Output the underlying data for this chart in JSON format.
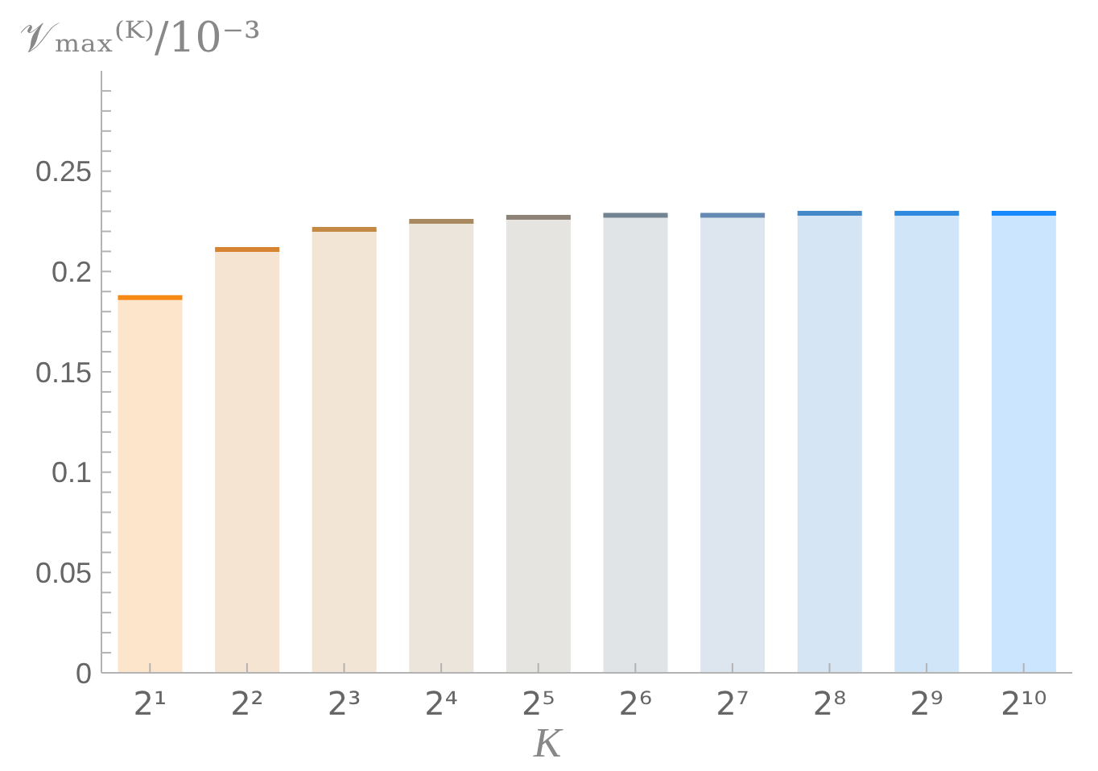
{
  "chart_data": {
    "type": "bar",
    "ylabel": "𝒱ₘₐₓ⁽ᴷ⁾/10⁻³",
    "xlabel": "K",
    "categories": [
      "2¹",
      "2²",
      "2³",
      "2⁴",
      "2⁵",
      "2⁶",
      "2⁷",
      "2⁸",
      "2⁹",
      "2¹⁰"
    ],
    "values": [
      0.187,
      0.211,
      0.221,
      0.225,
      0.227,
      0.228,
      0.228,
      0.229,
      0.229,
      0.229
    ],
    "colors": [
      "#fde5cb",
      "#f6e4d2",
      "#f2e5d6",
      "#ece5dc",
      "#e6e4e1",
      "#e0e4e7",
      "#dde5ee",
      "#d6e5f3",
      "#d1e5f8",
      "#cce5fe"
    ],
    "ylim": [
      0,
      0.3
    ],
    "yticks": [
      0,
      {
        "value": 0.01,
        "label": null
      },
      {
        "value": 0.02,
        "label": null
      },
      {
        "value": 0.03,
        "label": null
      },
      {
        "value": 0.04,
        "label": null
      },
      0.05,
      {
        "value": 0.06,
        "label": null
      },
      {
        "value": 0.07,
        "label": null
      },
      {
        "value": 0.08,
        "label": null
      },
      {
        "value": 0.09,
        "label": null
      },
      0.1,
      {
        "value": 0.11,
        "label": null
      },
      {
        "value": 0.12,
        "label": null
      },
      {
        "value": 0.13,
        "label": null
      },
      {
        "value": 0.14,
        "label": null
      },
      0.15,
      {
        "value": 0.16,
        "label": null
      },
      {
        "value": 0.17,
        "label": null
      },
      {
        "value": 0.18,
        "label": null
      },
      {
        "value": 0.19,
        "label": null
      },
      0.2,
      {
        "value": 0.21,
        "label": null
      },
      {
        "value": 0.22,
        "label": null
      },
      {
        "value": 0.23,
        "label": null
      },
      {
        "value": 0.24,
        "label": null
      },
      0.25,
      {
        "value": 0.26,
        "label": null
      },
      {
        "value": 0.27,
        "label": null
      },
      {
        "value": 0.28,
        "label": null
      },
      {
        "value": 0.29,
        "label": null
      }
    ]
  }
}
